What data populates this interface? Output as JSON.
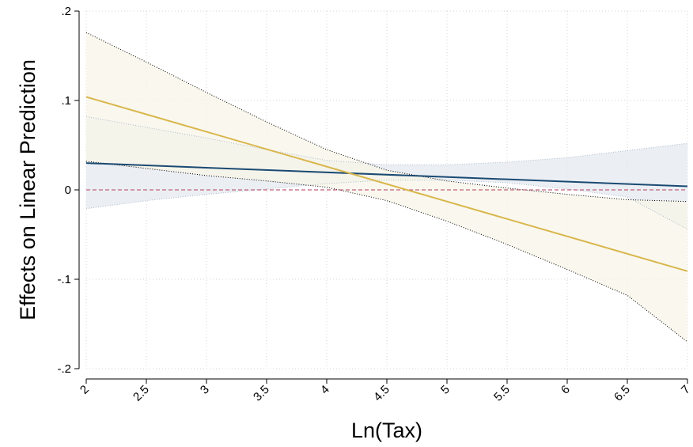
{
  "chart_data": {
    "type": "line",
    "title": "",
    "xlabel": "Ln(Tax)",
    "ylabel": "Effects on Linear Prediction",
    "xlim": [
      2,
      7
    ],
    "ylim": [
      -0.2,
      0.2
    ],
    "x_ticks": [
      2,
      2.5,
      3,
      3.5,
      4,
      4.5,
      5,
      5.5,
      6,
      6.5,
      7
    ],
    "x_tick_labels": [
      "2",
      "2.5",
      "3",
      "3.5",
      "4",
      "4.5",
      "5",
      "5.5",
      "6",
      "6.5",
      "7"
    ],
    "y_ticks": [
      -0.2,
      -0.1,
      0,
      0.1,
      0.2
    ],
    "y_tick_labels": [
      "-.2",
      "-.1",
      "0",
      ".1",
      ".2"
    ],
    "grid": true,
    "legend": "none",
    "reference_line": {
      "y": 0,
      "color": "#c0607a",
      "style": "dashed"
    },
    "series": [
      {
        "color": "#1a4a72",
        "band_color": "#e4eaf0",
        "x": [
          2,
          7
        ],
        "y": [
          0.03,
          0.004
        ],
        "ci_x": [
          2,
          2.5,
          3,
          3.5,
          4,
          4.5,
          5,
          5.5,
          6,
          6.5,
          7
        ],
        "ci_lower": [
          -0.021,
          -0.012,
          -0.005,
          0.001,
          0.007,
          0.011,
          0.011,
          0.008,
          0.001,
          -0.008,
          -0.044
        ],
        "ci_upper": [
          0.082,
          0.07,
          0.058,
          0.045,
          0.033,
          0.028,
          0.028,
          0.031,
          0.036,
          0.044,
          0.052
        ]
      },
      {
        "color": "#d9b64d",
        "band_color": "#f8f6e8",
        "x": [
          2,
          7
        ],
        "y": [
          0.104,
          -0.091
        ],
        "ci_x": [
          2,
          2.5,
          3,
          3.5,
          4,
          4.5,
          5,
          5.5,
          6,
          6.5,
          7
        ],
        "ci_lower": [
          0.032,
          0.024,
          0.016,
          0.01,
          0.003,
          -0.012,
          -0.035,
          -0.061,
          -0.089,
          -0.118,
          -0.17
        ],
        "ci_upper": [
          0.176,
          0.143,
          0.109,
          0.076,
          0.045,
          0.022,
          0.01,
          0.002,
          -0.005,
          -0.011,
          -0.013
        ]
      }
    ]
  }
}
